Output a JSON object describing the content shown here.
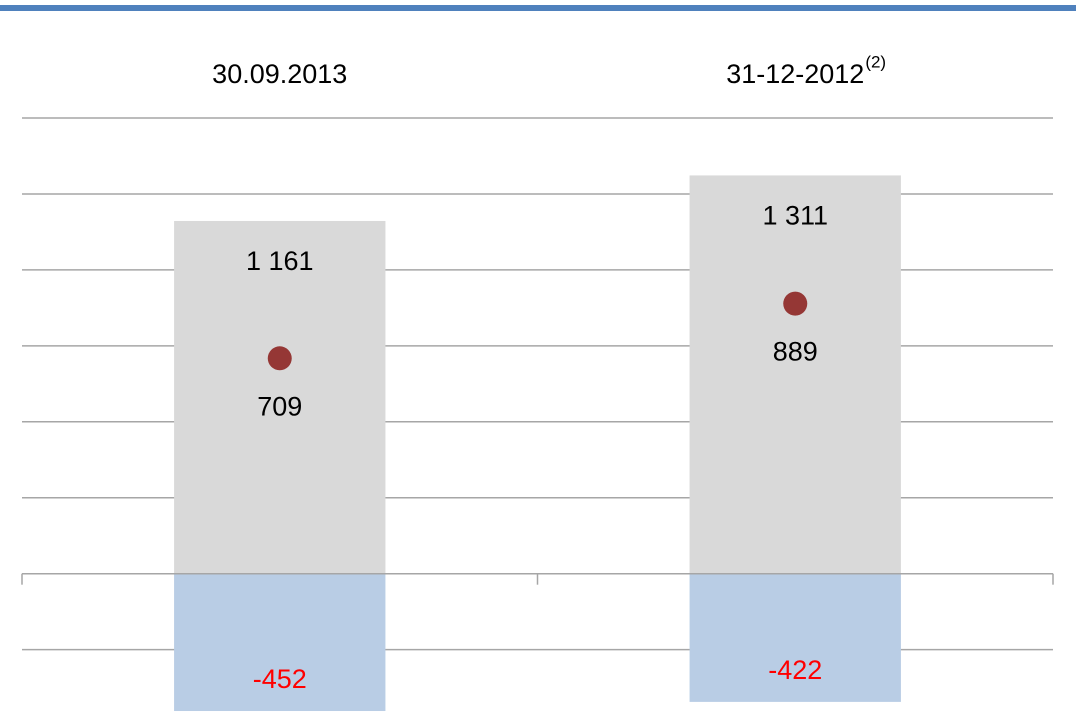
{
  "chart_data": {
    "type": "bar",
    "categories": [
      "30.09.2013",
      "31-12-2012"
    ],
    "category_notes": [
      null,
      "(2)"
    ],
    "series": [
      {
        "color": "#d9d9d9",
        "values": [
          1161,
          1311
        ],
        "value_labels": [
          "1 161",
          "1 311"
        ],
        "label_color": "#000000"
      },
      {
        "color": "#b9cde5",
        "values": [
          -452,
          -422
        ],
        "label_color": "#ff0000"
      }
    ],
    "net": {
      "color": "#953735",
      "values": [
        709,
        889
      ],
      "label_color": "#000000"
    },
    "ylim": [
      -475,
      1500
    ],
    "yticks": [
      -250,
      0,
      250,
      500,
      750,
      1000,
      1250,
      1500
    ],
    "grid": true,
    "grid_color": "#a6a6a6",
    "header_color": "#4f81bd"
  }
}
